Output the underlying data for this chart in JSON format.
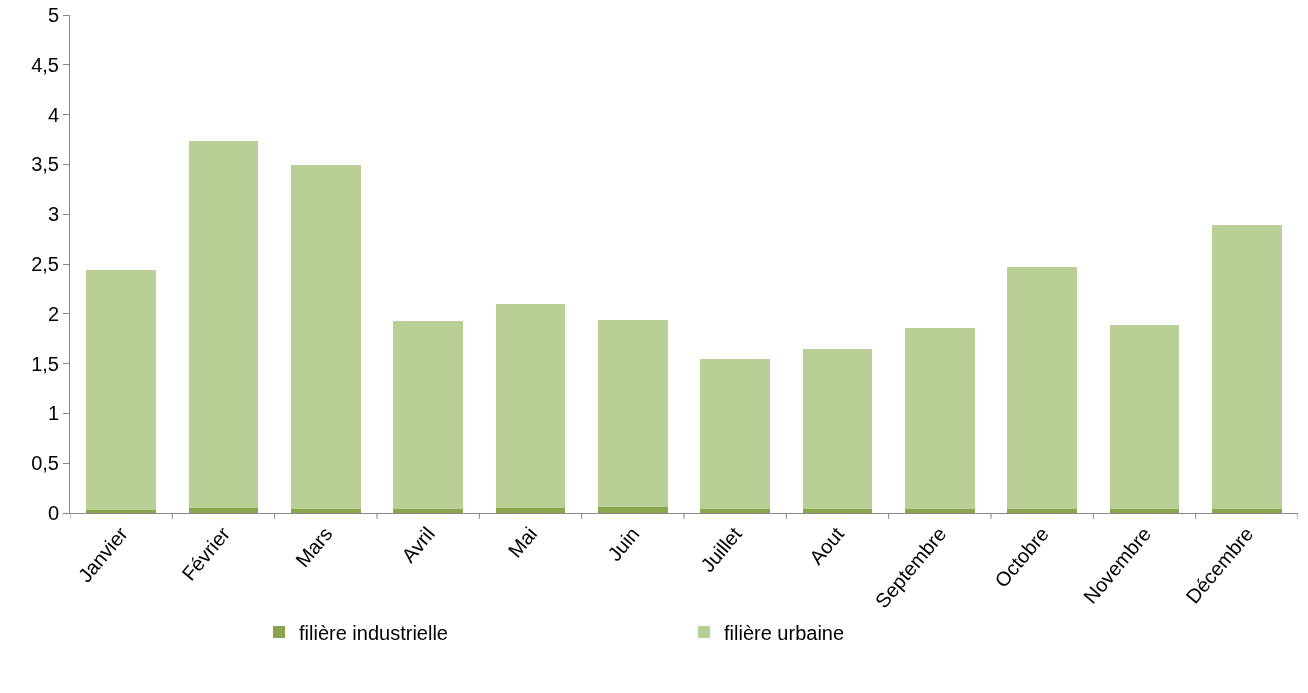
{
  "chart_data": {
    "type": "bar",
    "stacked": true,
    "categories": [
      "Janvier",
      "Février",
      "Mars",
      "Avril",
      "Mai",
      "Juin",
      "Juillet",
      "Aout",
      "Septembre",
      "Octobre",
      "Novembre",
      "Décembre"
    ],
    "series": [
      {
        "name": "filière industrielle",
        "color": "#89a54e",
        "values": [
          0.03,
          0.05,
          0.04,
          0.04,
          0.05,
          0.06,
          0.04,
          0.04,
          0.04,
          0.04,
          0.04,
          0.04
        ]
      },
      {
        "name": "filière urbaine",
        "color": "#b9cf96",
        "values": [
          2.41,
          3.68,
          3.45,
          1.89,
          2.05,
          1.88,
          1.51,
          1.61,
          1.82,
          2.43,
          1.85,
          2.85
        ]
      }
    ],
    "ylim": [
      0,
      5
    ],
    "yticks": [
      0,
      {
        "value": 0.5,
        "label": "0,5"
      },
      1,
      {
        "value": 1.5,
        "label": "1,5"
      },
      2,
      {
        "value": 2.5,
        "label": "2,5"
      },
      3,
      {
        "value": 3.5,
        "label": "3,5"
      },
      4,
      {
        "value": 4.5,
        "label": "4,5"
      },
      5
    ],
    "grid": false,
    "legend": "bottom"
  }
}
